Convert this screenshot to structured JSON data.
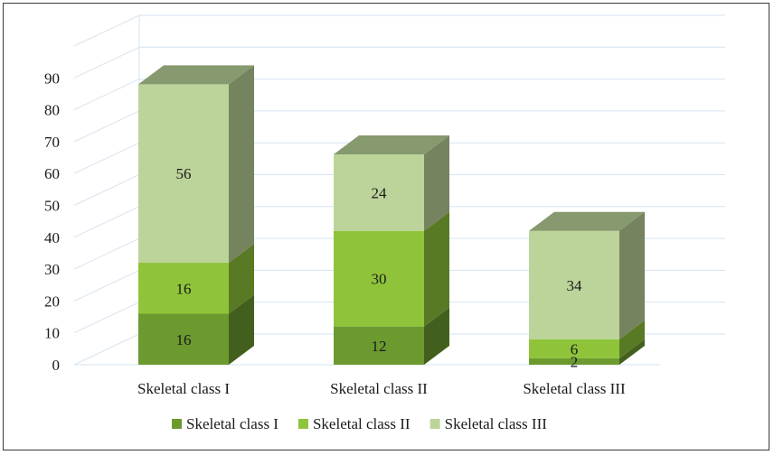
{
  "chart_data": {
    "type": "bar",
    "stacked": true,
    "style": "3d",
    "categories": [
      "Skeletal class I",
      "Skeletal class II",
      "Skeletal class III"
    ],
    "series": [
      {
        "name": "Skeletal class I",
        "values": [
          16,
          12,
          2
        ],
        "color": "#6c9a2f"
      },
      {
        "name": "Skeletal class II",
        "values": [
          16,
          30,
          6
        ],
        "color": "#8fc43a"
      },
      {
        "name": "Skeletal class III",
        "values": [
          56,
          24,
          34
        ],
        "color": "#bcd49a"
      }
    ],
    "y_ticks": [
      "0",
      "10",
      "20",
      "30",
      "40",
      "50",
      "60",
      "70",
      "80",
      "90"
    ],
    "ylim": [
      0,
      100
    ],
    "grid": true,
    "legend_position": "bottom"
  }
}
